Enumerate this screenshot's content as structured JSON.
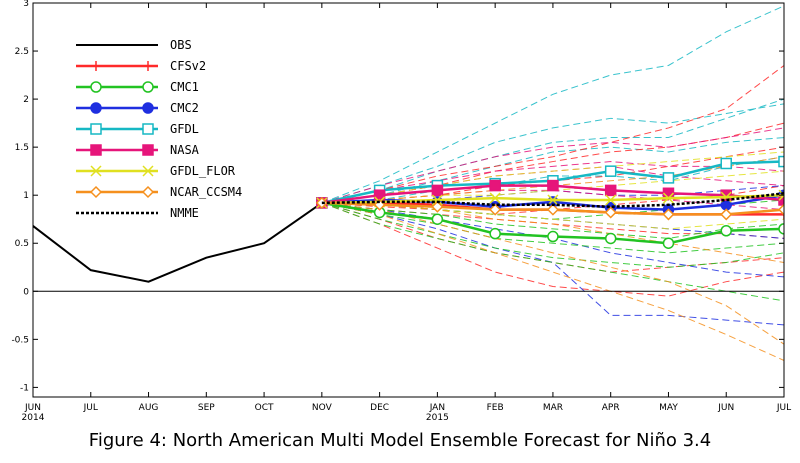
{
  "caption": "Figure 4: North American Multi Model Ensemble Forecast for Niño 3.4",
  "chart_data": {
    "type": "line",
    "x_categories": [
      "JUN",
      "JUL",
      "AUG",
      "SEP",
      "OCT",
      "NOV",
      "DEC",
      "JAN",
      "FEB",
      "MAR",
      "APR",
      "MAY",
      "JUN",
      "JUL"
    ],
    "x_year_labels": [
      {
        "index": 0,
        "label": "2014"
      },
      {
        "index": 7,
        "label": "2015"
      }
    ],
    "y_ticks": [
      -1,
      -0.5,
      0,
      0.5,
      1,
      1.5,
      2,
      2.5,
      3
    ],
    "y_tick_labels": [
      "-1",
      "-0.5",
      "0",
      "0.5",
      "1",
      "1.5",
      "2",
      "2.5",
      "3"
    ],
    "ylim": [
      -1.1,
      3
    ],
    "zero_line": true,
    "grid": false,
    "legend_position": "top-left",
    "series": [
      {
        "name": "OBS",
        "color": "#000000",
        "style": "solid",
        "marker": "none",
        "start": 0,
        "values": [
          0.68,
          0.22,
          0.1,
          0.35,
          0.5,
          0.92
        ]
      },
      {
        "name": "CFSv2",
        "color": "#ff2a2a",
        "style": "solid",
        "marker": "plus",
        "start": 5,
        "values": [
          0.92,
          0.92,
          0.9,
          0.85,
          0.85,
          0.82,
          0.8,
          0.8,
          0.8
        ]
      },
      {
        "name": "CMC1",
        "color": "#22c322",
        "style": "solid",
        "marker": "circle",
        "start": 5,
        "values": [
          0.92,
          0.82,
          0.75,
          0.6,
          0.57,
          0.55,
          0.5,
          0.63,
          0.65
        ]
      },
      {
        "name": "CMC2",
        "color": "#1f2fe0",
        "style": "solid",
        "marker": "circle-filled",
        "start": 5,
        "values": [
          0.92,
          0.95,
          0.93,
          0.88,
          0.93,
          0.87,
          0.85,
          0.9,
          1.0
        ]
      },
      {
        "name": "GFDL",
        "color": "#16b8c4",
        "style": "solid",
        "marker": "square",
        "start": 5,
        "values": [
          0.92,
          1.05,
          1.1,
          1.12,
          1.15,
          1.25,
          1.18,
          1.33,
          1.35
        ]
      },
      {
        "name": "NASA",
        "color": "#e6157a",
        "style": "solid",
        "marker": "square-filled",
        "start": 5,
        "values": [
          0.92,
          1.0,
          1.05,
          1.1,
          1.1,
          1.05,
          1.02,
          1.0,
          0.95
        ]
      },
      {
        "name": "GFDL_FLOR",
        "color": "#e0e020",
        "style": "solid",
        "marker": "x",
        "start": 5,
        "values": [
          0.92,
          0.93,
          0.95,
          0.97,
          0.95,
          0.95,
          0.97,
          0.98,
          1.0
        ]
      },
      {
        "name": "NCAR_CCSM4",
        "color": "#f5901e",
        "style": "solid",
        "marker": "diamond",
        "start": 5,
        "values": [
          0.92,
          0.9,
          0.88,
          0.85,
          0.85,
          0.82,
          0.8,
          0.8,
          0.85
        ]
      },
      {
        "name": "NMME",
        "color": "#000000",
        "style": "dotted",
        "marker": "none",
        "start": 5,
        "values": [
          0.92,
          0.93,
          0.93,
          0.9,
          0.9,
          0.88,
          0.9,
          0.95,
          1.02
        ]
      }
    ],
    "ensemble_members": {
      "start": 5,
      "style": "dashed",
      "members": [
        {
          "color": "#16b8c4",
          "values": [
            0.92,
            1.15,
            1.45,
            1.75,
            2.05,
            2.25,
            2.35,
            2.7,
            2.97
          ]
        },
        {
          "color": "#16b8c4",
          "values": [
            0.92,
            1.1,
            1.3,
            1.55,
            1.7,
            1.8,
            1.75,
            1.85,
            1.95
          ]
        },
        {
          "color": "#16b8c4",
          "values": [
            0.92,
            1.05,
            1.25,
            1.4,
            1.55,
            1.6,
            1.6,
            1.8,
            2.0
          ]
        },
        {
          "color": "#16b8c4",
          "values": [
            0.92,
            1.0,
            1.15,
            1.3,
            1.45,
            1.5,
            1.45,
            1.55,
            1.6
          ]
        },
        {
          "color": "#16b8c4",
          "values": [
            0.92,
            0.95,
            1.05,
            1.1,
            1.2,
            1.2,
            1.15,
            1.3,
            1.4
          ]
        },
        {
          "color": "#ff2a2a",
          "values": [
            0.92,
            1.05,
            1.2,
            1.3,
            1.4,
            1.55,
            1.7,
            1.9,
            2.35
          ]
        },
        {
          "color": "#ff2a2a",
          "values": [
            0.92,
            1.0,
            1.1,
            1.25,
            1.35,
            1.45,
            1.5,
            1.6,
            1.75
          ]
        },
        {
          "color": "#ff2a2a",
          "values": [
            0.92,
            0.95,
            1.0,
            1.1,
            1.15,
            1.2,
            1.3,
            1.4,
            1.5
          ]
        },
        {
          "color": "#ff2a2a",
          "values": [
            0.92,
            0.85,
            0.8,
            0.75,
            0.7,
            0.65,
            0.6,
            0.6,
            0.55
          ]
        },
        {
          "color": "#ff2a2a",
          "values": [
            0.92,
            0.7,
            0.45,
            0.2,
            0.05,
            0.0,
            -0.05,
            0.1,
            0.2
          ]
        },
        {
          "color": "#ff2a2a",
          "values": [
            0.92,
            0.75,
            0.55,
            0.4,
            0.3,
            0.2,
            0.25,
            0.3,
            0.35
          ]
        },
        {
          "color": "#ff2a2a",
          "values": [
            0.92,
            0.88,
            0.85,
            0.8,
            0.85,
            0.9,
            0.95,
            1.0,
            1.1
          ]
        },
        {
          "color": "#1f2fe0",
          "values": [
            0.92,
            0.8,
            0.65,
            0.45,
            0.3,
            -0.25,
            -0.25,
            -0.3,
            -0.35
          ]
        },
        {
          "color": "#1f2fe0",
          "values": [
            0.92,
            0.85,
            0.75,
            0.65,
            0.55,
            0.4,
            0.3,
            0.2,
            0.15
          ]
        },
        {
          "color": "#1f2fe0",
          "values": [
            0.92,
            0.95,
            0.95,
            1.0,
            1.05,
            1.0,
            1.0,
            1.05,
            1.1
          ]
        },
        {
          "color": "#1f2fe0",
          "values": [
            0.92,
            0.9,
            0.85,
            0.8,
            0.75,
            0.7,
            0.65,
            0.6,
            0.55
          ]
        },
        {
          "color": "#22c322",
          "values": [
            0.92,
            0.75,
            0.6,
            0.45,
            0.35,
            0.3,
            0.25,
            0.3,
            0.4
          ]
        },
        {
          "color": "#22c322",
          "values": [
            0.92,
            0.8,
            0.7,
            0.55,
            0.5,
            0.45,
            0.4,
            0.45,
            0.5
          ]
        },
        {
          "color": "#22c322",
          "values": [
            0.92,
            0.85,
            0.8,
            0.7,
            0.65,
            0.6,
            0.55,
            0.65,
            0.7
          ]
        },
        {
          "color": "#22c322",
          "values": [
            0.92,
            0.9,
            0.85,
            0.8,
            0.75,
            0.8,
            0.85,
            0.9,
            0.95
          ]
        },
        {
          "color": "#22c322",
          "values": [
            0.92,
            0.7,
            0.55,
            0.4,
            0.3,
            0.2,
            0.1,
            0.0,
            -0.1
          ]
        },
        {
          "color": "#e6157a",
          "values": [
            0.92,
            1.05,
            1.15,
            1.25,
            1.3,
            1.35,
            1.3,
            1.3,
            1.25
          ]
        },
        {
          "color": "#e6157a",
          "values": [
            0.92,
            1.0,
            1.1,
            1.2,
            1.25,
            1.3,
            1.2,
            1.15,
            1.1
          ]
        },
        {
          "color": "#e6157a",
          "values": [
            0.92,
            0.95,
            1.0,
            1.05,
            1.05,
            1.0,
            0.95,
            0.9,
            0.85
          ]
        },
        {
          "color": "#e6157a",
          "values": [
            0.92,
            1.1,
            1.25,
            1.4,
            1.5,
            1.55,
            1.5,
            1.6,
            1.7
          ]
        },
        {
          "color": "#e0e020",
          "values": [
            0.92,
            1.0,
            1.1,
            1.2,
            1.25,
            1.3,
            1.35,
            1.4,
            1.45
          ]
        },
        {
          "color": "#e0e020",
          "values": [
            0.92,
            0.9,
            0.85,
            0.8,
            0.75,
            0.7,
            0.65,
            0.7,
            0.75
          ]
        },
        {
          "color": "#e0e020",
          "values": [
            0.92,
            0.95,
            1.0,
            1.0,
            1.05,
            1.1,
            1.15,
            1.2,
            1.25
          ]
        },
        {
          "color": "#f5901e",
          "values": [
            0.92,
            0.8,
            0.6,
            0.4,
            0.2,
            0.0,
            -0.2,
            -0.45,
            -0.72
          ]
        },
        {
          "color": "#f5901e",
          "values": [
            0.92,
            0.85,
            0.7,
            0.55,
            0.4,
            0.25,
            0.1,
            -0.15,
            -0.55
          ]
        },
        {
          "color": "#f5901e",
          "values": [
            0.92,
            0.9,
            0.85,
            0.75,
            0.7,
            0.6,
            0.5,
            0.4,
            0.3
          ]
        },
        {
          "color": "#f5901e",
          "values": [
            0.92,
            0.95,
            1.0,
            1.05,
            1.1,
            1.15,
            1.2,
            1.3,
            1.4
          ]
        }
      ]
    }
  }
}
